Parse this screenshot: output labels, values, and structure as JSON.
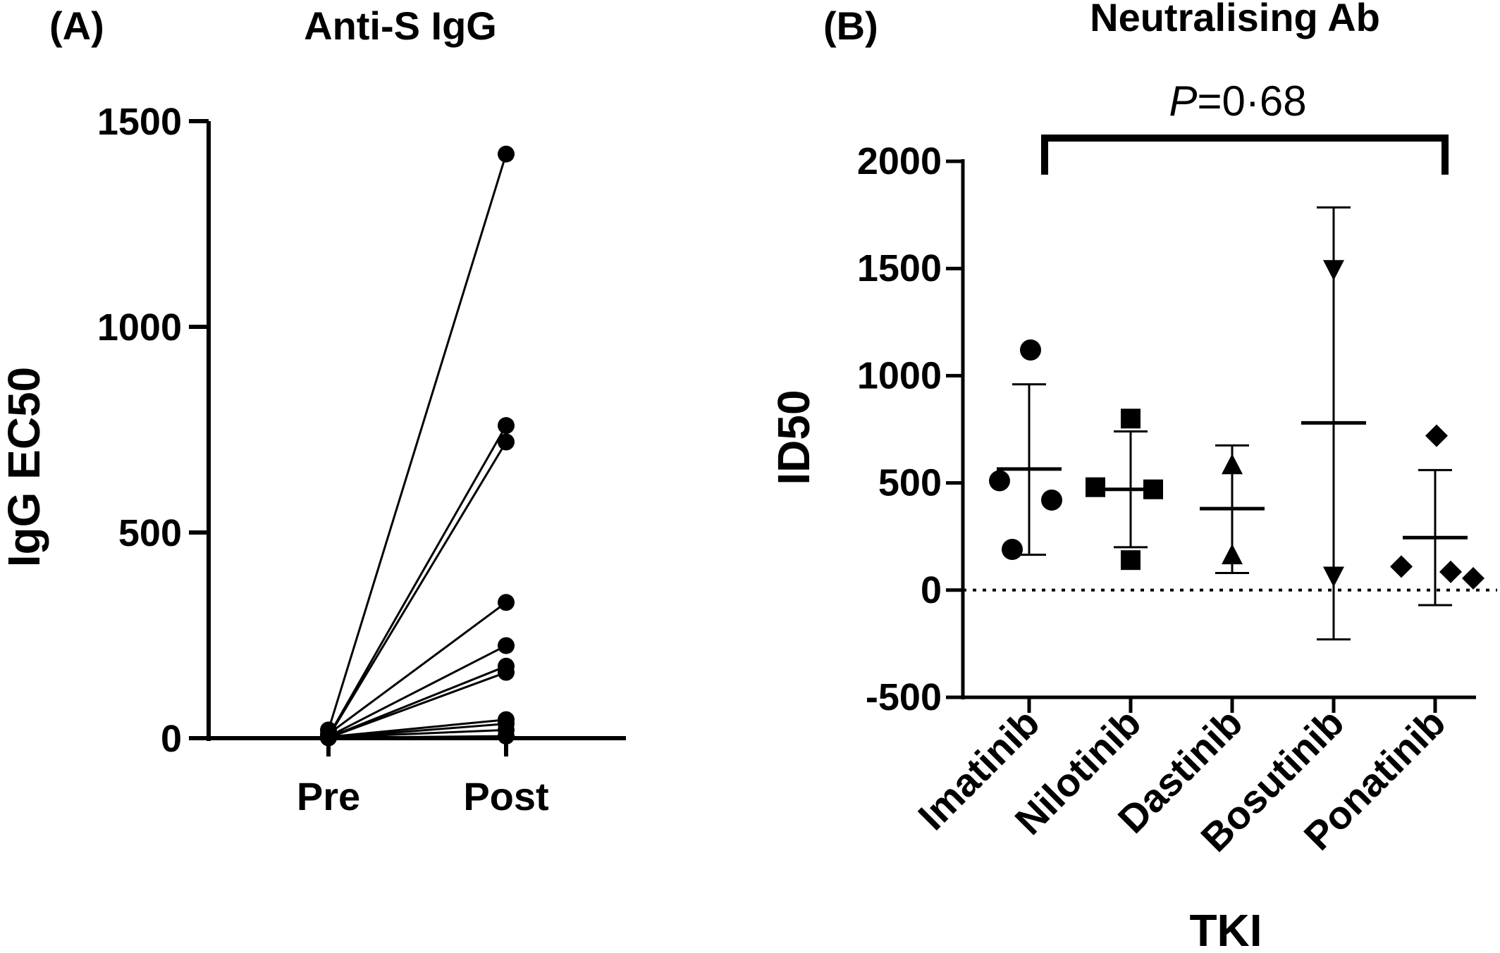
{
  "chart_data": [
    {
      "type": "line",
      "panel_label": "(A)",
      "title": "Anti-S IgG",
      "xlabel": "",
      "ylabel": "IgG EC50",
      "categories": [
        "Pre",
        "Post"
      ],
      "ylim": [
        0,
        1500
      ],
      "yticks": [
        0,
        500,
        1000,
        1500
      ],
      "ytick_labels": [
        "0",
        "500",
        "1000",
        "1500"
      ],
      "grid": false,
      "legend": "none",
      "series": [
        {
          "values": [
            20,
            1420
          ]
        },
        {
          "values": [
            5,
            760
          ]
        },
        {
          "values": [
            3,
            720
          ]
        },
        {
          "values": [
            10,
            330
          ]
        },
        {
          "values": [
            4,
            225
          ]
        },
        {
          "values": [
            2,
            175
          ]
        },
        {
          "values": [
            1,
            160
          ]
        },
        {
          "values": [
            3,
            45
          ]
        },
        {
          "values": [
            1,
            35
          ]
        },
        {
          "values": [
            2,
            20
          ]
        },
        {
          "values": [
            1,
            5
          ]
        }
      ]
    },
    {
      "type": "scatter",
      "panel_label": "(B)",
      "title": "Neutralising Ab",
      "xlabel": "TKI",
      "ylabel": "ID50",
      "categories": [
        "Imatinib",
        "Nilotinib",
        "Dastinib",
        "Bosutinib",
        "Ponatinib"
      ],
      "ylim": [
        -500,
        2000
      ],
      "yticks": [
        -500,
        0,
        500,
        1000,
        1500,
        2000
      ],
      "ytick_labels": [
        "-500",
        "0",
        "500",
        "1000",
        "1500",
        "2000"
      ],
      "reference_line": {
        "y": 0,
        "style": "dotted"
      },
      "grid": false,
      "legend": "none",
      "significance": {
        "from": "Imatinib",
        "to": "Ponatinib",
        "prefix": "P",
        "text": "=0·68"
      },
      "groups": [
        {
          "category": "Imatinib",
          "marker": "circle",
          "points": [
            1120,
            510,
            420,
            190
          ],
          "mean": 565,
          "upper": 960,
          "lower": 165
        },
        {
          "category": "Nilotinib",
          "marker": "square",
          "points": [
            800,
            480,
            470,
            140
          ],
          "mean": 470,
          "upper": 740,
          "lower": 200
        },
        {
          "category": "Dastinib",
          "marker": "triangle-up",
          "points": [
            580,
            160
          ],
          "mean": 380,
          "upper": 675,
          "lower": 80
        },
        {
          "category": "Bosutinib",
          "marker": "triangle-down",
          "points": [
            1500,
            70
          ],
          "mean": 780,
          "upper": 1785,
          "lower": -230
        },
        {
          "category": "Ponatinib",
          "marker": "diamond",
          "points": [
            720,
            110,
            85,
            55
          ],
          "mean": 245,
          "upper": 560,
          "lower": -70
        }
      ]
    }
  ]
}
